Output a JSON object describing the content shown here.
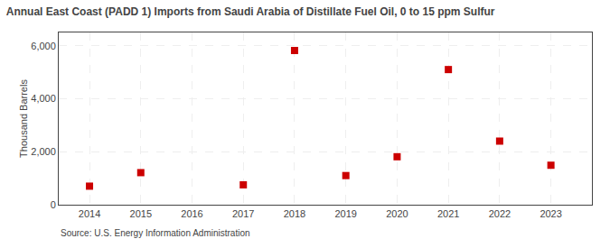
{
  "chart_data": {
    "type": "scatter",
    "title": "Annual East Coast (PADD 1) Imports from Saudi Arabia of Distillate Fuel Oil, 0 to 15 ppm Sulfur",
    "ylabel": "Thousand Barrels",
    "annotations": [
      "Source: U.S. Energy Information Administration"
    ],
    "x": [
      2014,
      2015,
      2017,
      2018,
      2019,
      2020,
      2021,
      2022,
      2023
    ],
    "values": [
      700,
      1210,
      750,
      5820,
      1100,
      1810,
      5100,
      2400,
      1490
    ],
    "color": "#cc0000",
    "marker": "square",
    "xlim": [
      2013.4,
      2023.8
    ],
    "ylim": [
      0,
      6500
    ],
    "xticks": [
      2014,
      2015,
      2016,
      2017,
      2018,
      2019,
      2020,
      2021,
      2022,
      2023
    ],
    "yticks": [
      0,
      {
        "value": 2000,
        "label": "2,000"
      },
      {
        "value": 4000,
        "label": "4,000"
      },
      {
        "value": 6000,
        "label": "6,000"
      }
    ],
    "grid": true
  }
}
